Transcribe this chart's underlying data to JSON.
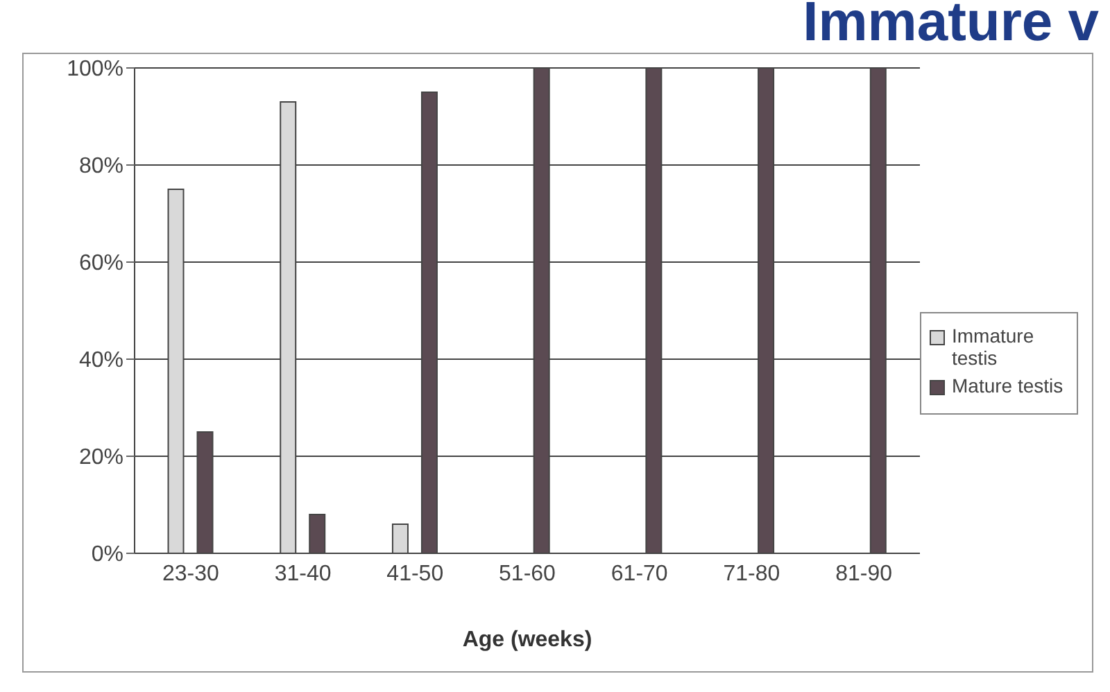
{
  "chart_data": {
    "type": "bar",
    "title": "Immature v",
    "xlabel": "Age (weeks)",
    "categories": [
      "23-30",
      "31-40",
      "41-50",
      "51-60",
      "61-70",
      "71-80",
      "81-90"
    ],
    "series": [
      {
        "name": "Immature testis",
        "color": "#d9d9d9",
        "values": [
          75,
          93,
          6,
          0,
          0,
          0,
          0
        ]
      },
      {
        "name": "Mature testis",
        "color": "#5b4a52",
        "values": [
          25,
          8,
          95,
          100,
          100,
          100,
          100
        ]
      }
    ],
    "ylim": [
      0,
      100
    ],
    "yticks": [
      {
        "value": 0,
        "label": "0%"
      },
      {
        "value": 20,
        "label": "20%"
      },
      {
        "value": 40,
        "label": "40%"
      },
      {
        "value": 60,
        "label": "60%"
      },
      {
        "value": 80,
        "label": "80%"
      },
      {
        "value": 100,
        "label": "100%"
      }
    ],
    "grid": "y",
    "legend": "right"
  }
}
